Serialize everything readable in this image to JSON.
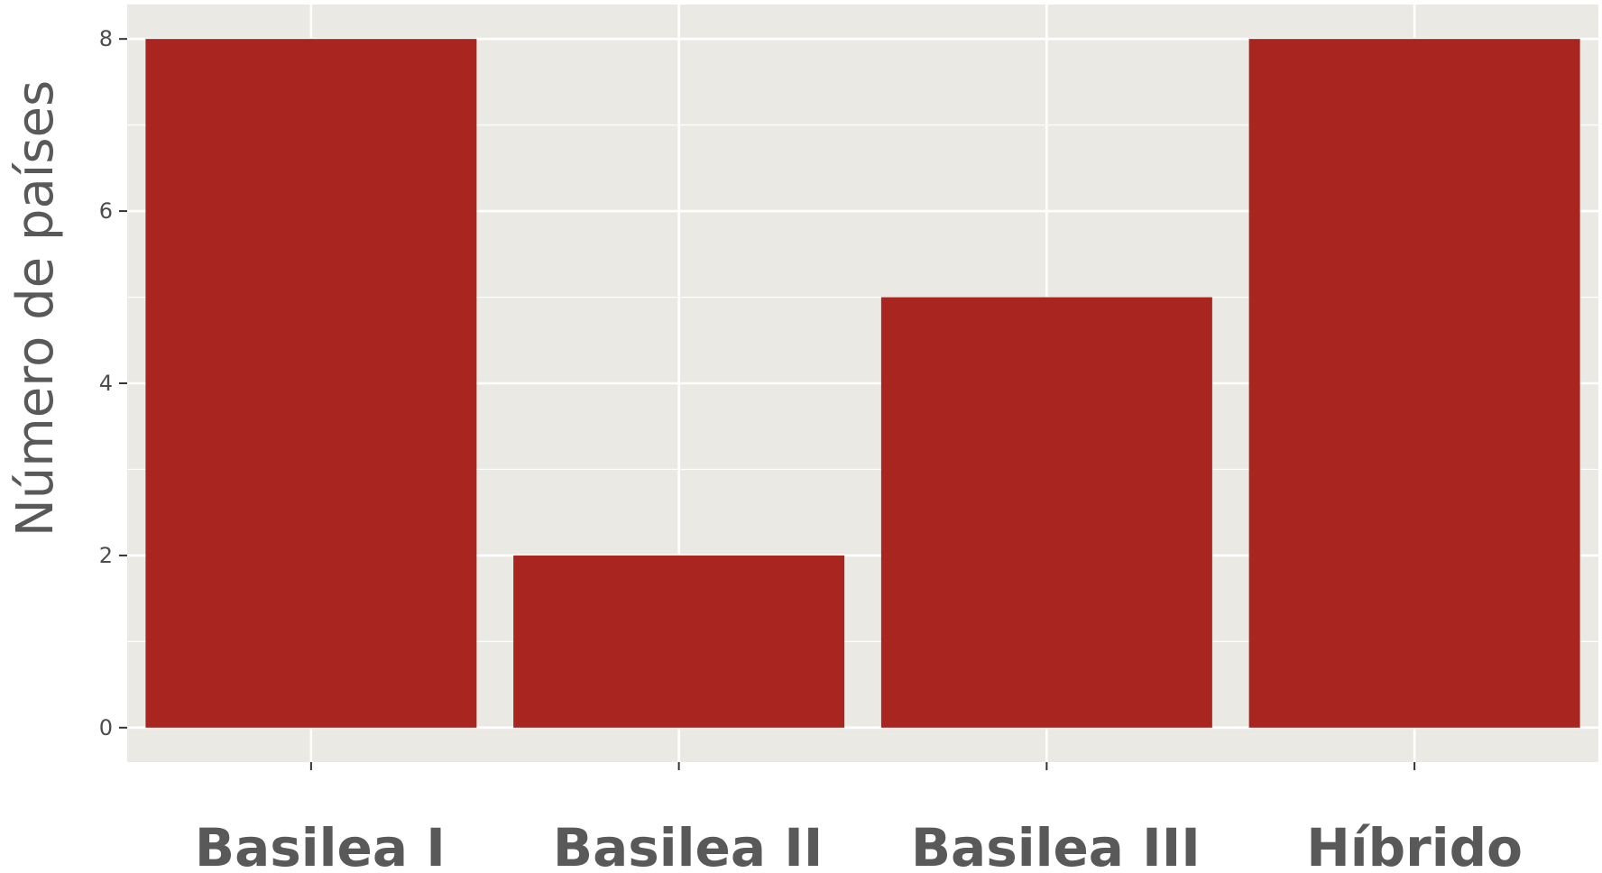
{
  "chart_data": {
    "type": "bar",
    "categories": [
      "Basilea I",
      "Basilea II",
      "Basilea III",
      "Híbrido"
    ],
    "values": [
      8,
      2,
      5,
      8
    ],
    "title": "",
    "xlabel": "",
    "ylabel": "Número de países",
    "ylim": [
      -0.4,
      8.4
    ],
    "yticks": [
      "0",
      "2",
      "4",
      "6",
      "8"
    ],
    "grid": true,
    "legend": "none",
    "colors": {
      "bar": "#a82520",
      "panel_background": "#ebe9e4",
      "grid": "#ffffff"
    }
  }
}
